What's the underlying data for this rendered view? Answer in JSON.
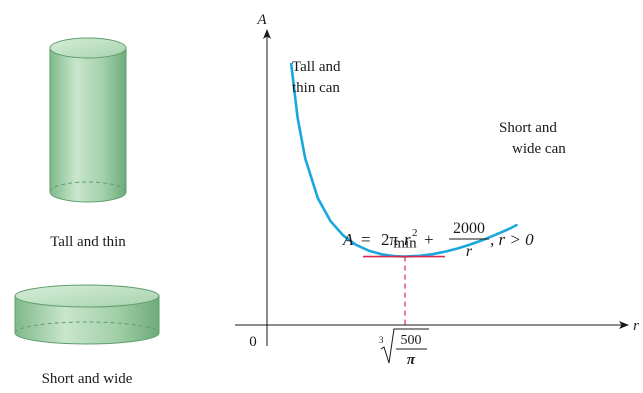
{
  "cylinders": {
    "tall_caption": "Tall and thin",
    "short_caption": "Short and wide",
    "fill_color": "#a9d4ae",
    "edge_color": "#5f9e6d"
  },
  "chart_data": {
    "type": "line",
    "title": "",
    "xlabel": "r",
    "ylabel": "A",
    "origin_label": "0",
    "x_tick_label": "∛(500/π)",
    "x_tick_radicand_top": "500",
    "x_tick_radicand_bottom": "π",
    "x_tick_index": "3",
    "x_tick_value": 5.42,
    "xlim": [
      0,
      12.5
    ],
    "ylim": [
      0,
      2000
    ],
    "function": "A = 2πr² + 2000/r",
    "domain_note": "r > 0",
    "formula_label": {
      "lhs": "A",
      "eq": "=",
      "coef": "2π",
      "var": "r",
      "exp": "2",
      "plus": "+",
      "frac_top": "2000",
      "frac_bottom": "r",
      "tail": ", r > 0"
    },
    "curve_color": "#1aa7de",
    "min_marker_color": "#d8294d",
    "min_label": "min",
    "min_point": {
      "x": 5.42,
      "y": 553.6
    },
    "series": [
      {
        "x": [
          0.95,
          1.2,
          1.5,
          2.0,
          2.5,
          3.0,
          3.5,
          4.0,
          4.5,
          5.0,
          5.42,
          6.0,
          6.5,
          7.0,
          7.5,
          8.0,
          8.5,
          9.0,
          9.5,
          9.8
        ],
        "y": [
          2111,
          1676,
          1348,
          1025,
          839,
          723,
          648,
          601,
          572,
          557,
          554,
          560,
          573,
          594,
          620,
          652,
          689,
          731,
          777,
          808
        ]
      }
    ],
    "annotations": [
      {
        "text_line1": "Tall and",
        "text_line2": "thin can"
      },
      {
        "text_line1": "Short and",
        "text_line2": "wide can"
      }
    ]
  }
}
